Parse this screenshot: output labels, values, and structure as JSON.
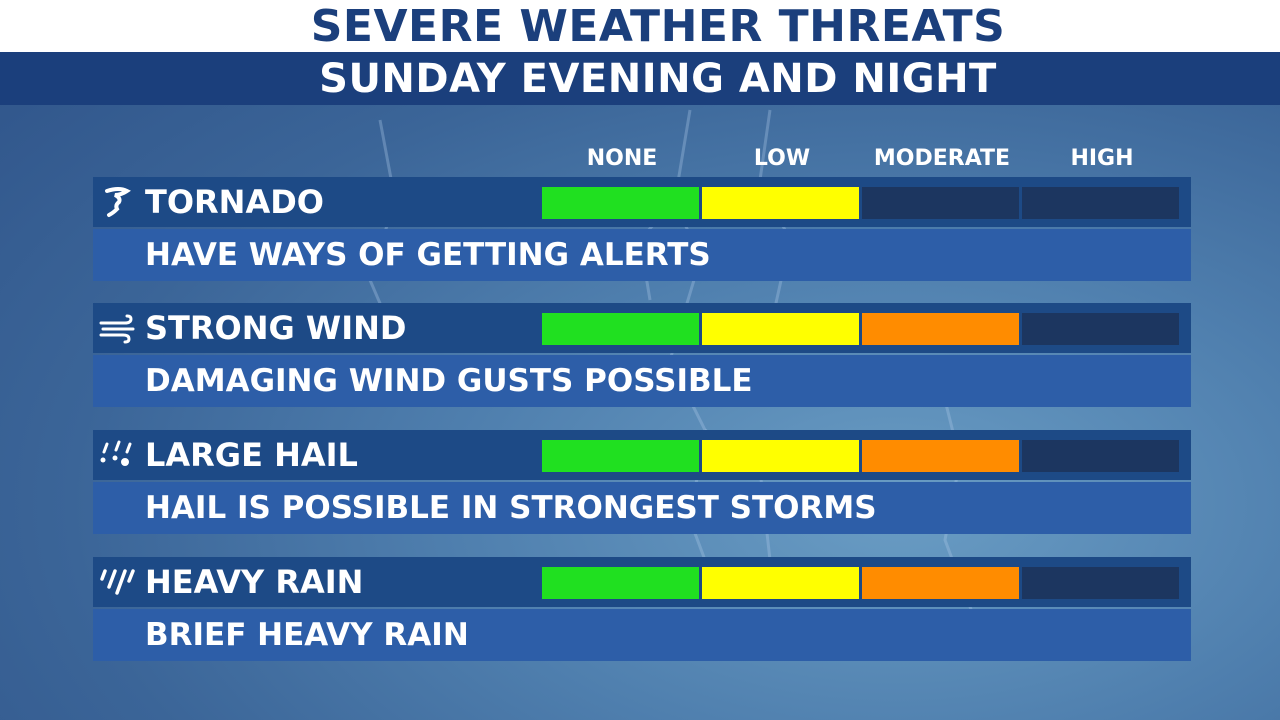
{
  "title": "SEVERE WEATHER THREATS",
  "subtitle": "SUNDAY EVENING AND NIGHT",
  "levels": [
    "NONE",
    "LOW",
    "MODERATE",
    "HIGH"
  ],
  "level_colors": [
    "#20e020",
    "#ffff00",
    "#ff8c00",
    "#1c3660"
  ],
  "threats": [
    {
      "icon": "tornado-icon",
      "name": "TORNADO",
      "description": "HAVE WAYS OF GETTING ALERTS",
      "level": 2
    },
    {
      "icon": "wind-icon",
      "name": "STRONG WIND",
      "description": "DAMAGING WIND GUSTS POSSIBLE",
      "level": 3
    },
    {
      "icon": "hail-icon",
      "name": "LARGE HAIL",
      "description": "HAIL IS POSSIBLE IN STRONGEST STORMS",
      "level": 3
    },
    {
      "icon": "rain-icon",
      "name": "HEAVY RAIN",
      "description": "BRIEF HEAVY RAIN",
      "level": 3
    }
  ]
}
